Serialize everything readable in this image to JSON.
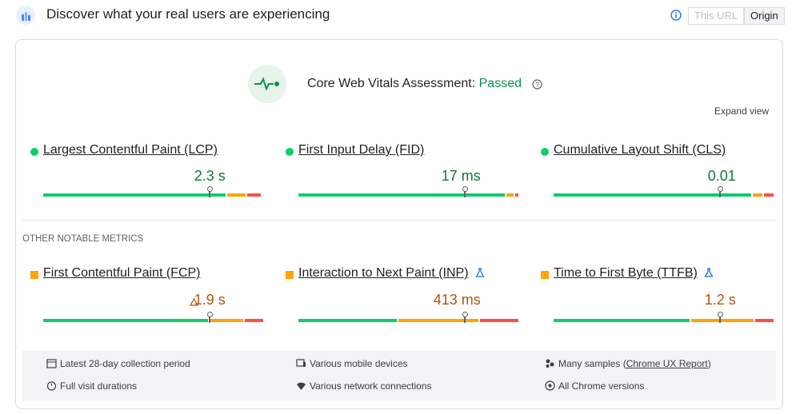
{
  "header": {
    "title": "Discover what your real users are experiencing",
    "toggle": [
      "This URL",
      "Origin"
    ],
    "active_toggle": 1
  },
  "assessment": {
    "label": "Core Web Vitals Assessment:",
    "result": "Passed",
    "expand": "Expand view"
  },
  "core_metrics": [
    {
      "name": "Largest Contentful Paint (LCP)",
      "value": "2.3 s",
      "rating": "good",
      "distribution": [
        83,
        9,
        7
      ],
      "marker": 75
    },
    {
      "name": "First Input Delay (FID)",
      "value": "17 ms",
      "rating": "good",
      "distribution": [
        94,
        4,
        2
      ],
      "marker": 75
    },
    {
      "name": "Cumulative Layout Shift (CLS)",
      "value": "0.01",
      "rating": "good",
      "distribution": [
        90,
        5,
        5
      ],
      "marker": 75
    }
  ],
  "other_heading": "OTHER NOTABLE METRICS",
  "other_metrics": [
    {
      "name": "First Contentful Paint (FCP)",
      "value": "1.9 s",
      "rating": "average",
      "warning": true,
      "experimental": false,
      "distribution": [
        75,
        16,
        9
      ],
      "marker": 75
    },
    {
      "name": "Interaction to Next Paint (INP)",
      "value": "413 ms",
      "rating": "average",
      "warning": false,
      "experimental": true,
      "distribution": [
        45,
        37,
        18
      ],
      "marker": 75
    },
    {
      "name": "Time to First Byte (TTFB)",
      "value": "1.2 s",
      "rating": "average",
      "warning": false,
      "experimental": true,
      "distribution": [
        62,
        29,
        9
      ],
      "marker": 75
    }
  ],
  "footer": {
    "items": [
      "Latest 28-day collection period",
      "Various mobile devices",
      "Full visit durations",
      "Various network connections",
      "All Chrome versions"
    ],
    "samples": {
      "before": "Many samples (",
      "link": "Chrome UX Report",
      "after": ")"
    }
  }
}
